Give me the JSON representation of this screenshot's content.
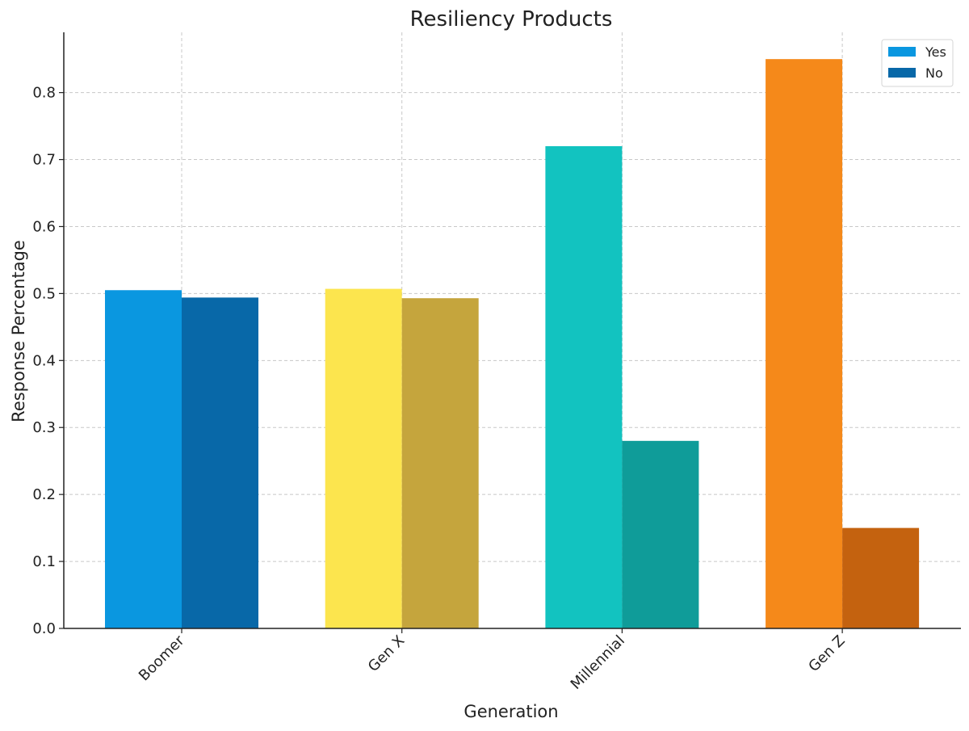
{
  "chart_data": {
    "type": "bar",
    "title": "Resiliency Products",
    "xlabel": "Generation",
    "ylabel": "Response Percentage",
    "categories": [
      "Boomer",
      "Gen X",
      "Millennial",
      "Gen Z"
    ],
    "series": [
      {
        "name": "Yes",
        "values": [
          0.505,
          0.507,
          0.72,
          0.85
        ]
      },
      {
        "name": "No",
        "values": [
          0.494,
          0.493,
          0.28,
          0.15
        ]
      }
    ],
    "bar_colors": {
      "Yes": [
        "#0a97e0",
        "#fce54e",
        "#12c3c0",
        "#f5891a"
      ],
      "No": [
        "#0868a8",
        "#c5a53d",
        "#0f9c99",
        "#c4620f"
      ]
    },
    "legend_colors": {
      "Yes": "#0a97e0",
      "No": "#0868a8"
    },
    "ylim": [
      0,
      0.89
    ],
    "yticks": [
      "0.0",
      "0.1",
      "0.2",
      "0.3",
      "0.4",
      "0.5",
      "0.6",
      "0.7",
      "0.8"
    ],
    "grid": true,
    "legend_position": "top-right"
  }
}
